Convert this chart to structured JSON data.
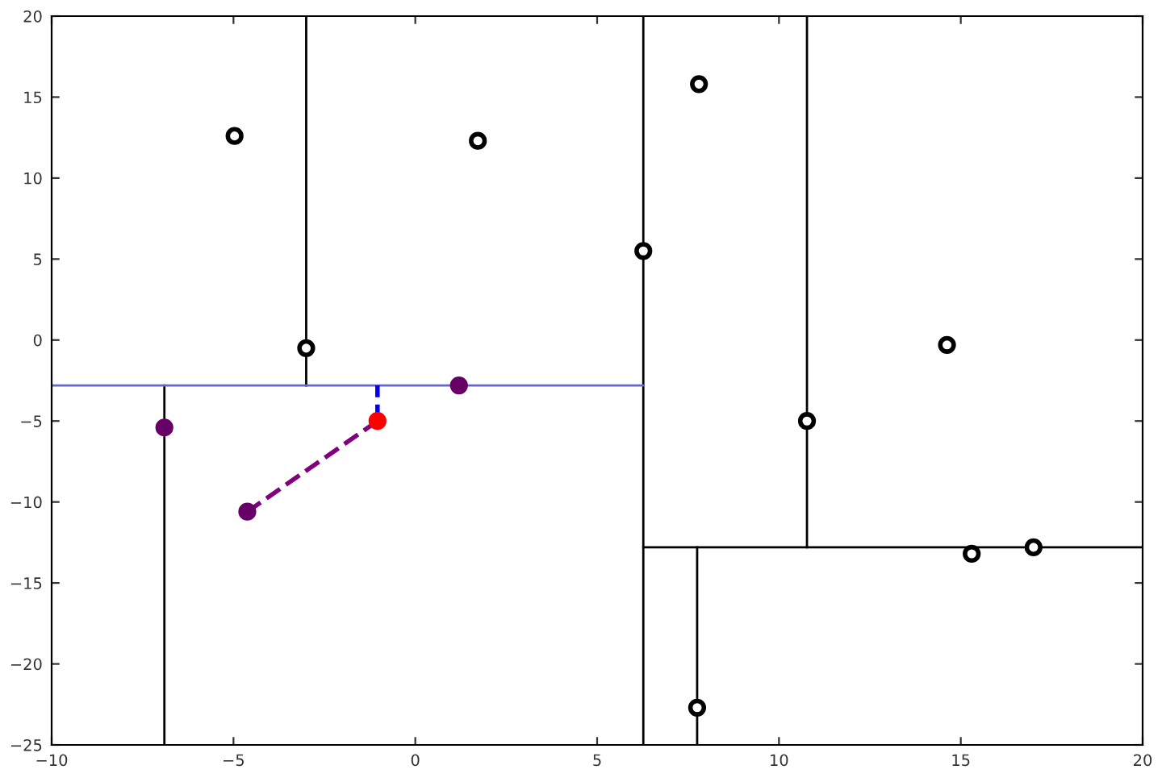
{
  "chart_data": {
    "type": "scatter",
    "xlim": [
      -10,
      20
    ],
    "ylim": [
      -25,
      20
    ],
    "xticks": [
      {
        "value": -10,
        "label": "−10"
      },
      {
        "value": -5,
        "label": "−5"
      },
      0,
      5,
      10,
      15,
      20
    ],
    "yticks": [
      {
        "value": -25,
        "label": "−25"
      },
      {
        "value": -20,
        "label": "−20"
      },
      {
        "value": -15,
        "label": "−15"
      },
      {
        "value": -10,
        "label": "−10"
      },
      {
        "value": -5,
        "label": "−5"
      },
      0,
      5,
      10,
      15,
      20
    ],
    "grid": false,
    "legend": false,
    "series": [
      {
        "type": "line",
        "color": "#000000",
        "x": [
          -3.0,
          -3.0
        ],
        "values": [
          -2.8,
          20
        ]
      },
      {
        "type": "line",
        "color": "#000000",
        "x": [
          -6.9,
          -6.9
        ],
        "values": [
          -25,
          -2.8
        ]
      },
      {
        "type": "line",
        "color": "#000000",
        "x": [
          6.27,
          6.27
        ],
        "values": [
          -25,
          20
        ]
      },
      {
        "type": "line",
        "color": "#000000",
        "x": [
          6.27,
          20
        ],
        "values": [
          -12.8,
          -12.8
        ]
      },
      {
        "type": "line",
        "color": "#000000",
        "x": [
          10.77,
          10.77
        ],
        "values": [
          -12.8,
          20
        ]
      },
      {
        "type": "line",
        "color": "#000000",
        "x": [
          7.75,
          7.75
        ],
        "values": [
          -25,
          -12.8
        ]
      },
      {
        "type": "line",
        "color": "#6666cc",
        "x": [
          -10,
          6.27
        ],
        "values": [
          -2.8,
          -2.8
        ]
      },
      {
        "type": "line",
        "color": "#0000ff",
        "line_style": "dashed",
        "x": [
          -1.04,
          -1.04
        ],
        "values": [
          -5.0,
          -2.8
        ]
      },
      {
        "type": "line",
        "color": "#800080",
        "line_style": "dashed",
        "x": [
          -1.04,
          -4.62
        ],
        "values": [
          -5.0,
          -10.6
        ]
      },
      {
        "color": "#000000",
        "marker": "circle",
        "x": [
          -4.97,
          1.72,
          -3.0,
          6.27,
          7.8,
          14.62,
          10.77,
          15.3,
          17.0,
          7.75
        ],
        "values": [
          12.6,
          12.3,
          -0.5,
          5.5,
          15.8,
          -0.3,
          -5.0,
          -13.2,
          -12.8,
          -22.7
        ]
      },
      {
        "color": "#660066",
        "marker": "circle",
        "x": [
          -6.9,
          -4.62,
          1.2
        ],
        "values": [
          -5.4,
          -10.6,
          -2.8
        ]
      },
      {
        "color": "#ff0000",
        "marker": "circle",
        "x": [
          -1.04
        ],
        "values": [
          -5.0
        ]
      }
    ]
  }
}
